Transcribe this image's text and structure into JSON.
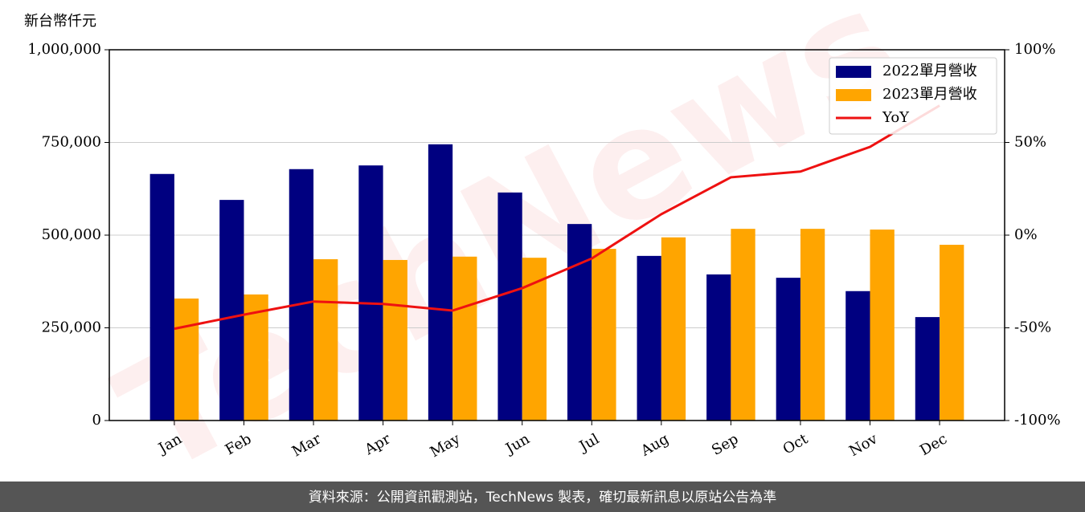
{
  "chart_data": {
    "type": "bar_line",
    "y_axis_label": "新台幣仟元",
    "watermark": "TechNews",
    "footer": "資料來源：公開資訊觀測站，TechNews 製表，確切最新訊息以原站公告為準",
    "categories": [
      "Jan",
      "Feb",
      "Mar",
      "Apr",
      "May",
      "Jun",
      "Jul",
      "Aug",
      "Sep",
      "Oct",
      "Nov",
      "Dec"
    ],
    "series": [
      {
        "name": "2022單月營收",
        "color": "#000080",
        "type": "bar",
        "values": [
          665000,
          595000,
          678000,
          688000,
          745000,
          615000,
          530000,
          444000,
          394000,
          385000,
          349000,
          279000
        ]
      },
      {
        "name": "2023單月營收",
        "color": "#ffa500",
        "type": "bar",
        "values": [
          329000,
          340000,
          435000,
          433000,
          442000,
          439000,
          463000,
          494000,
          517000,
          517000,
          515000,
          474000
        ]
      },
      {
        "name": "YoY",
        "color": "#ee1111",
        "type": "line",
        "axis": "y2",
        "values": [
          -50.5,
          -42.9,
          -35.8,
          -37.1,
          -40.7,
          -28.6,
          -12.6,
          11.3,
          31.2,
          34.3,
          47.6,
          69.9
        ]
      }
    ],
    "ylim": [
      0,
      1000000
    ],
    "yticks": [
      0,
      {
        "value": 250000,
        "label": "250,000"
      },
      {
        "value": 500000,
        "label": "500,000"
      },
      {
        "value": 750000,
        "label": "750,000"
      },
      {
        "value": 1000000,
        "label": "1,000,000"
      }
    ],
    "y2lim": [
      -100,
      100
    ],
    "y2ticks": [
      {
        "value": -100,
        "label": "-100%"
      },
      {
        "value": -50,
        "label": "-50%"
      },
      {
        "value": 0,
        "label": "0%"
      },
      {
        "value": 50,
        "label": "50%"
      },
      {
        "value": 100,
        "label": "100%"
      }
    ],
    "grid": true,
    "legend": "upper right"
  }
}
